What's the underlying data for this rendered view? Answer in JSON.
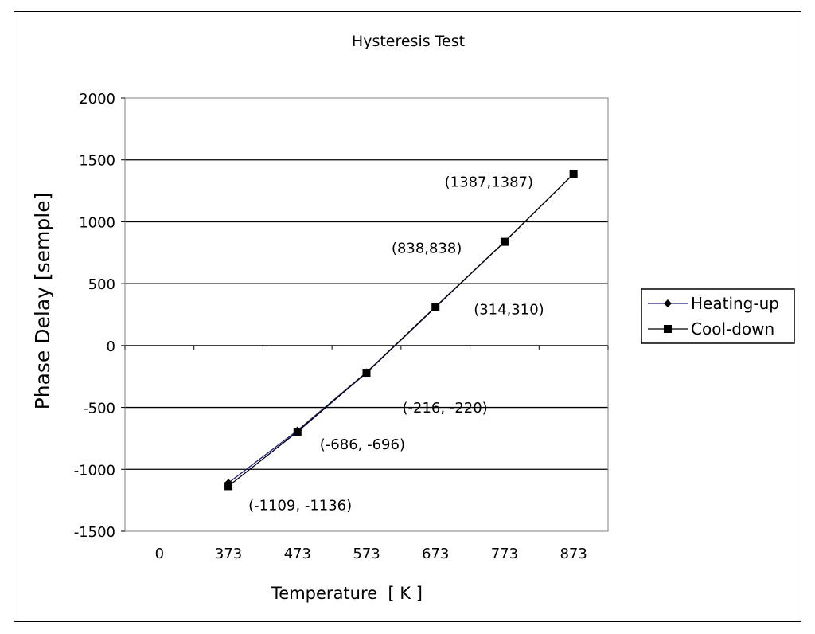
{
  "chart_data": {
    "type": "line",
    "title": "Hysteresis Test",
    "xlabel": "Temperature  [ K ]",
    "ylabel": "Phase Delay [semple]",
    "x_categories": [
      "0",
      "373",
      "473",
      "573",
      "673",
      "773",
      "873"
    ],
    "y_ticks": [
      2000,
      1500,
      1000,
      500,
      0,
      -500,
      -1000,
      -1500
    ],
    "ylim": [
      -1500,
      2000
    ],
    "grid": "horizontal",
    "legend_position": "right",
    "series": [
      {
        "name": "Heating-up",
        "marker": "diamond",
        "color": "#1a1a80",
        "x": [
          373,
          473,
          573,
          673,
          773,
          873
        ],
        "y": [
          -1109,
          -686,
          -216,
          314,
          838,
          1387
        ]
      },
      {
        "name": "Cool-down",
        "marker": "square",
        "color": "#000000",
        "x": [
          373,
          473,
          573,
          673,
          773,
          873
        ],
        "y": [
          -1136,
          -696,
          -220,
          310,
          838,
          1387
        ]
      }
    ],
    "annotations": [
      {
        "text": "(-1109, -1136)",
        "x": 373,
        "y": -1136
      },
      {
        "text": "(-686, -696)",
        "x": 473,
        "y": -696
      },
      {
        "text": "(-216, -220)",
        "x": 573,
        "y": -220
      },
      {
        "text": "(314,310)",
        "x": 673,
        "y": 310
      },
      {
        "text": "(838,838)",
        "x": 773,
        "y": 838
      },
      {
        "text": "(1387,1387)",
        "x": 873,
        "y": 1387
      }
    ]
  }
}
